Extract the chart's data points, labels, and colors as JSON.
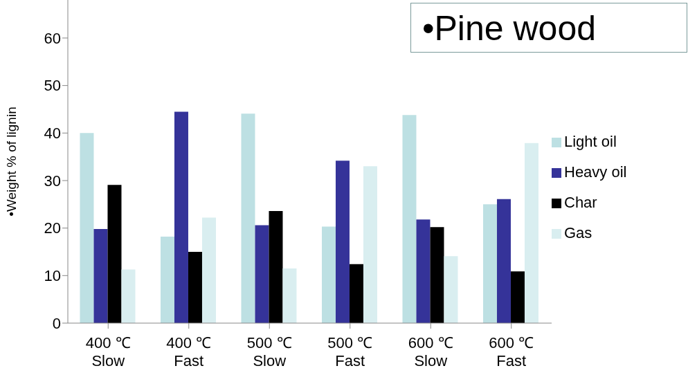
{
  "chart_data": {
    "type": "bar",
    "title": "•Pine wood",
    "ylabel": "•Weight % of lignin",
    "categories": [
      "400 ℃\nSlow",
      "400 ℃\nFast",
      "500 ℃\nSlow",
      "500 ℃\nFast",
      "600 ℃\nSlow",
      "600 ℃\nFast"
    ],
    "series": [
      {
        "name": "Light oil",
        "color": "#bde0e3",
        "values": [
          40,
          18.2,
          44.1,
          20.3,
          43.8,
          25
        ]
      },
      {
        "name": "Heavy oil",
        "color": "#353399",
        "values": [
          19.8,
          44.5,
          20.6,
          34.2,
          21.8,
          26.1
        ]
      },
      {
        "name": "Char",
        "color": "#000000",
        "values": [
          29.1,
          15,
          23.6,
          12.4,
          20.2,
          10.9
        ]
      },
      {
        "name": "Gas",
        "color": "#d9eef0",
        "values": [
          11.3,
          22.2,
          11.5,
          33,
          14.1,
          37.9
        ]
      }
    ],
    "ylim": [
      0,
      68
    ],
    "yticks": [
      0,
      10,
      20,
      30,
      40,
      50,
      60
    ],
    "grid": false,
    "legend": "right"
  }
}
